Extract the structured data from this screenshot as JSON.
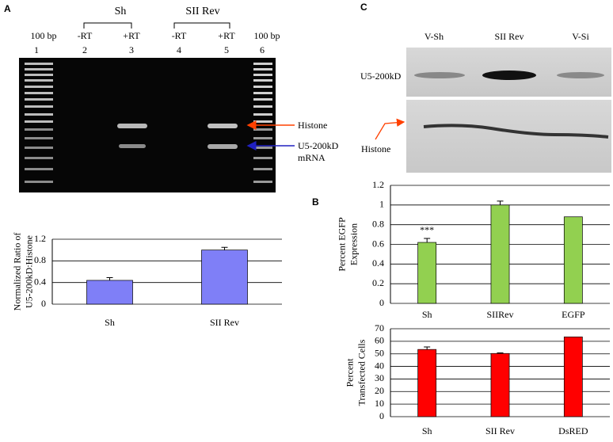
{
  "panels": {
    "a": "A",
    "b": "B",
    "c": "C"
  },
  "gel_a": {
    "groups": [
      "Sh",
      "SII Rev"
    ],
    "lane_headers": [
      "100 bp",
      "-RT",
      "+RT",
      "-RT",
      "+RT",
      "100 bp"
    ],
    "lane_numbers": [
      "1",
      "2",
      "3",
      "4",
      "5",
      "6"
    ],
    "band_labels": {
      "histone": "Histone",
      "u5": [
        "U5-200kD",
        "mRNA"
      ]
    }
  },
  "blot_c": {
    "lanes": [
      "V-Sh",
      "SII Rev",
      "V-Si"
    ],
    "rows": [
      "U5-200kD",
      "Histone"
    ]
  },
  "chart_data": [
    {
      "type": "bar",
      "ylabel": [
        "Normalized Ratio of",
        "U5-200kD:Histone"
      ],
      "categories": [
        "Sh",
        "SII Rev"
      ],
      "values": [
        0.44,
        1.0
      ],
      "errors": [
        0.05,
        0.05
      ],
      "color": "#7f7ff7",
      "ylim": [
        0,
        1.2
      ],
      "yticks": [
        0,
        0.4,
        0.8,
        1.2
      ],
      "grid": true
    },
    {
      "type": "bar",
      "ylabel": [
        "Percent EGFP",
        "Expression"
      ],
      "annotation": "***",
      "categories": [
        "Sh",
        "SIIRev",
        "EGFP"
      ],
      "values": [
        0.62,
        1.0,
        0.88
      ],
      "errors": [
        0.04,
        0.04,
        null
      ],
      "color": "#92d050",
      "ylim": [
        0,
        1.2
      ],
      "yticks": [
        0,
        0.2,
        0.4,
        0.6,
        0.8,
        1,
        1.2
      ],
      "grid": true
    },
    {
      "type": "bar",
      "ylabel": [
        "Percent",
        "Transfected Cells"
      ],
      "categories": [
        "Sh",
        "SII Rev",
        "DsRED"
      ],
      "values": [
        53.5,
        50.3,
        63.5
      ],
      "errors": [
        2,
        0.5,
        null
      ],
      "color": "#ff0000",
      "ylim": [
        0,
        70
      ],
      "yticks": [
        0,
        10,
        20,
        30,
        40,
        50,
        60,
        70
      ],
      "grid": true
    }
  ]
}
